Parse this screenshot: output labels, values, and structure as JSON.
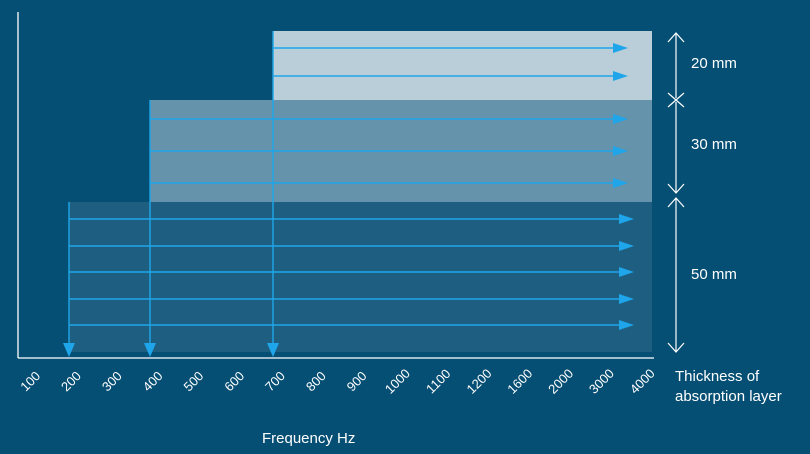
{
  "x_axis": {
    "title": "Frequency Hz",
    "ticks": [
      "100",
      "200",
      "300",
      "400",
      "500",
      "600",
      "700",
      "800",
      "900",
      "1000",
      "1100",
      "1200",
      "1600",
      "2000",
      "3000",
      "4000"
    ]
  },
  "layers": [
    {
      "thickness": "20 mm",
      "start_frequency": "700",
      "arrow_count": 2
    },
    {
      "thickness": "30 mm",
      "start_frequency": "400",
      "arrow_count": 3
    },
    {
      "thickness": "50 mm",
      "start_frequency": "200",
      "arrow_count": 5
    }
  ],
  "thickness_axis": {
    "title_line1": "Thickness of",
    "title_line2": "absorption layer"
  },
  "colors": {
    "background": "#064f74",
    "layer_20": "#b9ced9",
    "layer_30": "#6593ac",
    "layer_50": "#1e5f81",
    "arrow": "#1ea5ea",
    "axis": "#ffffff"
  }
}
